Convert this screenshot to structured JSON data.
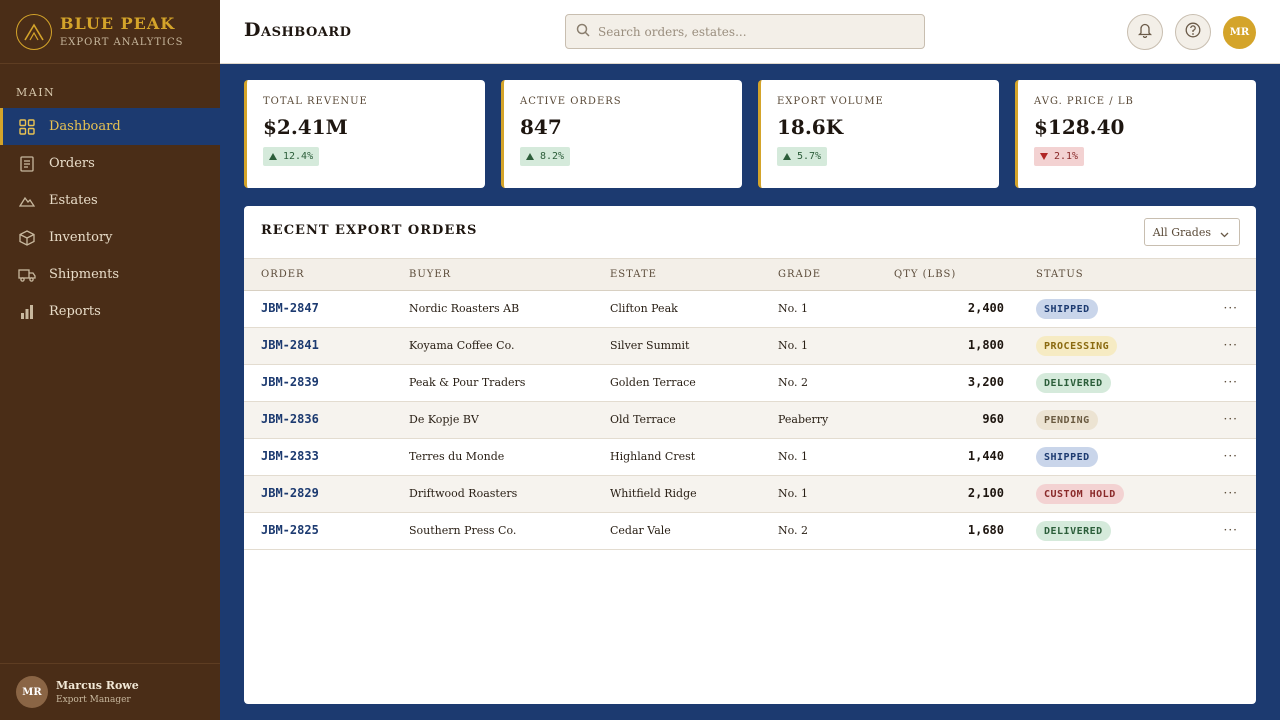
{
  "brand": {
    "name": "BLUE PEAK",
    "subtitle": "EXPORT ANALYTICS",
    "logo_icon": "mountain-logo-icon",
    "accent": "#d4a42a"
  },
  "sidebar": {
    "section_label": "MAIN",
    "items": [
      {
        "label": "Dashboard",
        "icon": "grid-icon",
        "active": true
      },
      {
        "label": "Orders",
        "icon": "document-icon"
      },
      {
        "label": "Estates",
        "icon": "mountain-icon"
      },
      {
        "label": "Inventory",
        "icon": "box-icon"
      },
      {
        "label": "Shipments",
        "icon": "truck-icon"
      },
      {
        "label": "Reports",
        "icon": "bar-chart-icon"
      }
    ],
    "user": {
      "initials": "MR",
      "name": "Marcus Rowe",
      "role": "Export Manager"
    }
  },
  "header": {
    "title": "Dashboard",
    "search_placeholder": "Search orders, estates...",
    "avatar_initials": "MR"
  },
  "kpis": [
    {
      "label": "TOTAL REVENUE",
      "value": "$2.41M",
      "delta": "12.4%",
      "direction": "up"
    },
    {
      "label": "ACTIVE ORDERS",
      "value": "847",
      "delta": "8.2%",
      "direction": "up"
    },
    {
      "label": "EXPORT VOLUME",
      "value": "18.6K",
      "delta": "5.7%",
      "direction": "up"
    },
    {
      "label": "AVG. PRICE / LB",
      "value": "$128.40",
      "delta": "2.1%",
      "direction": "down"
    }
  ],
  "orders": {
    "title": "RECENT EXPORT ORDERS",
    "filter_label": "All Grades",
    "columns": [
      "ORDER",
      "BUYER",
      "ESTATE",
      "GRADE",
      "QTY (LBS)",
      "STATUS"
    ],
    "rows": [
      {
        "order": "JBM-2847",
        "buyer": "Nordic Roasters AB",
        "estate": "Clifton Peak",
        "grade": "No. 1",
        "qty": "2,400",
        "status": "SHIPPED"
      },
      {
        "order": "JBM-2841",
        "buyer": "Koyama Coffee Co.",
        "estate": "Silver Summit",
        "grade": "No. 1",
        "qty": "1,800",
        "status": "PROCESSING"
      },
      {
        "order": "JBM-2839",
        "buyer": "Peak & Pour Traders",
        "estate": "Golden Terrace",
        "grade": "No. 2",
        "qty": "3,200",
        "status": "DELIVERED"
      },
      {
        "order": "JBM-2836",
        "buyer": "De Kopje BV",
        "estate": "Old Terrace",
        "grade": "Peaberry",
        "qty": "960",
        "status": "PENDING"
      },
      {
        "order": "JBM-2833",
        "buyer": "Terres du Monde",
        "estate": "Highland Crest",
        "grade": "No. 1",
        "qty": "1,440",
        "status": "SHIPPED"
      },
      {
        "order": "JBM-2829",
        "buyer": "Driftwood Roasters",
        "estate": "Whitfield Ridge",
        "grade": "No. 1",
        "qty": "2,100",
        "status": "CUSTOM HOLD"
      },
      {
        "order": "JBM-2825",
        "buyer": "Southern Press Co.",
        "estate": "Cedar Vale",
        "grade": "No. 2",
        "qty": "1,680",
        "status": "DELIVERED"
      }
    ],
    "row_action_icon": "more-horizontal-icon"
  }
}
